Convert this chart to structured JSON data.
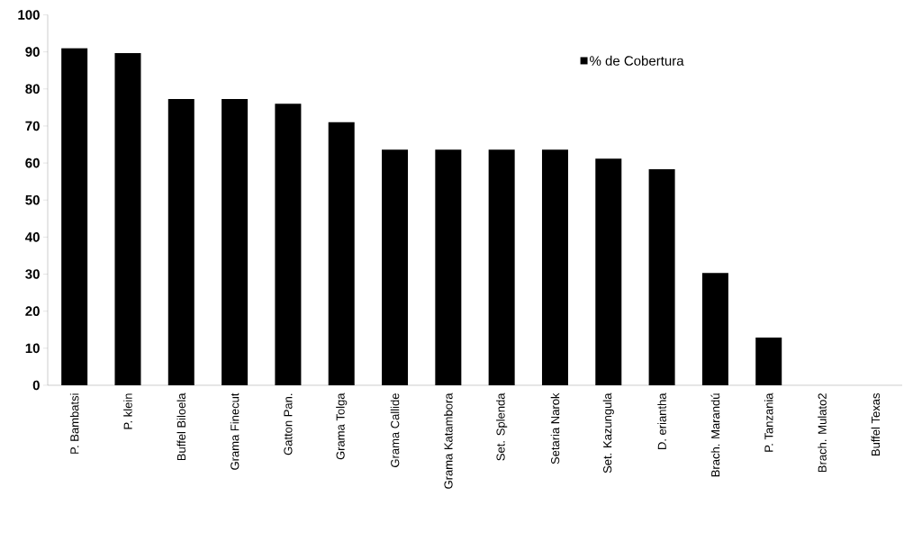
{
  "chart_data": {
    "type": "bar",
    "categories": [
      "P. Bambatsi",
      "P. klein",
      "Buffel Biloela",
      "Grama Finecut",
      "Gatton Pan.",
      "Grama Tolga",
      "Grama Callide",
      "Grama Katambora",
      "Set. Splenda",
      "Setaria Narok",
      "Set. Kazungula",
      "D. eriantha",
      "Brach. Marandú",
      "P. Tanzania",
      "Brach. Mulato2",
      "Buffel Texas"
    ],
    "series": [
      {
        "name": "% de Cobertura",
        "color": "#000000",
        "values": [
          91,
          89.7,
          77.3,
          77.3,
          76,
          71,
          63.6,
          63.6,
          63.6,
          63.6,
          61.2,
          58.3,
          30.3,
          12.9,
          0,
          0
        ]
      }
    ],
    "ylim": [
      0,
      100
    ],
    "yticks": [
      0,
      10,
      20,
      30,
      40,
      50,
      60,
      70,
      80,
      90,
      100
    ],
    "grid": false,
    "legend": "top right"
  }
}
